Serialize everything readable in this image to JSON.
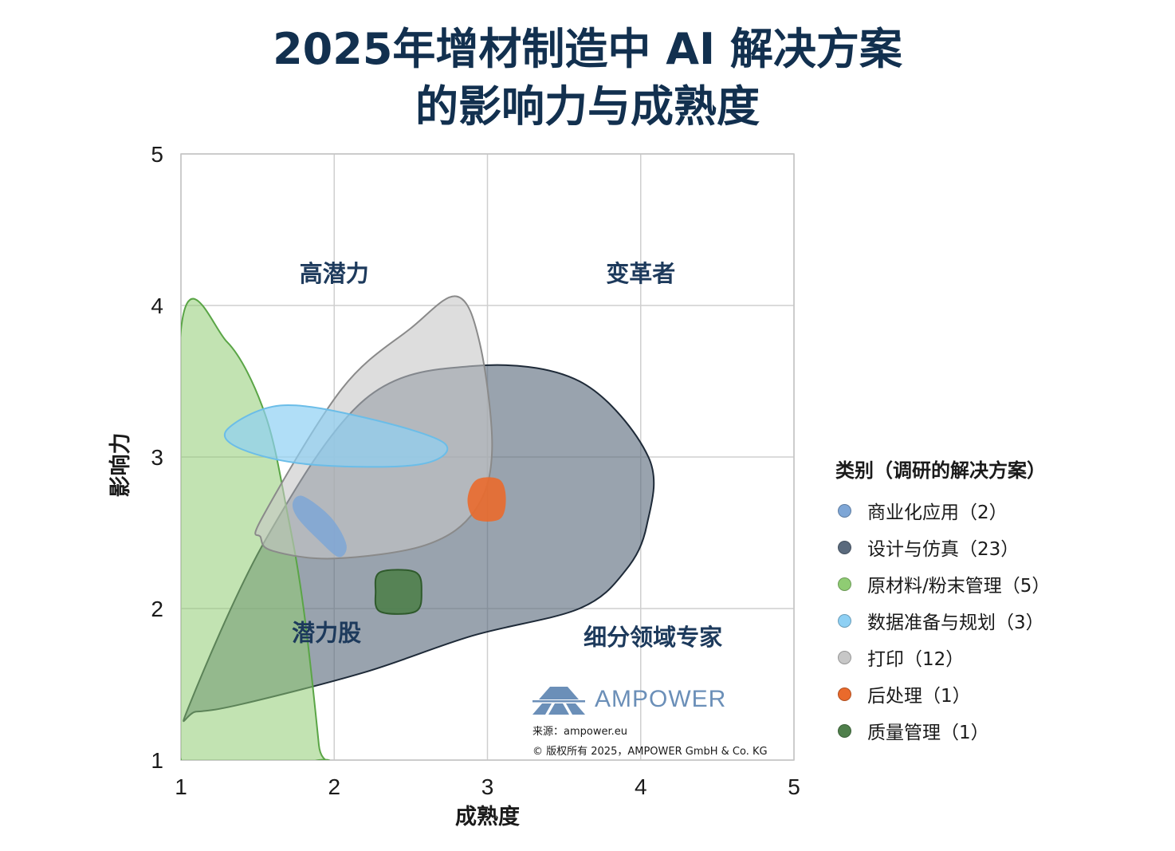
{
  "title_line1": "2025年增材制造中 AI 解决方案",
  "title_line2": "的影响力与成熟度",
  "colors": {
    "title": "#12304f",
    "quadrant_label": "#1d3a5c",
    "grid": "#cfcfcf",
    "brand": "#6b8fb8"
  },
  "chart_data": {
    "type": "scatter",
    "title": "2025年增材制造中 AI 解决方案的影响力与成熟度",
    "xlabel": "成熟度",
    "ylabel": "影响力",
    "xlim": [
      1,
      5
    ],
    "ylim": [
      1,
      5
    ],
    "x_ticks": [
      1,
      2,
      3,
      4,
      5
    ],
    "y_ticks": [
      1,
      2,
      3,
      4,
      5
    ],
    "grid": true,
    "legend_position": "right",
    "legend_title": "类别（调研的解决方案）",
    "quadrants": [
      {
        "label": "高潜力",
        "x": 2.0,
        "y": 4.2
      },
      {
        "label": "变革者",
        "x": 4.0,
        "y": 4.2
      },
      {
        "label": "潜力股",
        "x": 1.95,
        "y": 1.83
      },
      {
        "label": "细分领域专家",
        "x": 4.08,
        "y": 1.8
      }
    ],
    "series": [
      {
        "name": "商业化应用（2）",
        "color": "#7ea6d6",
        "fill_opacity": 0.85,
        "stroke": "none",
        "region": [
          [
            1.8,
            2.74
          ],
          [
            1.98,
            2.6
          ],
          [
            2.08,
            2.42
          ],
          [
            2.03,
            2.34
          ],
          [
            1.9,
            2.45
          ],
          [
            1.76,
            2.6
          ],
          [
            1.73,
            2.7
          ]
        ]
      },
      {
        "name": "设计与仿真（23）",
        "color": "#5a6a7d",
        "fill_opacity": 0.62,
        "stroke": "#1e2a38",
        "region": [
          [
            1.05,
            1.35
          ],
          [
            1.55,
            2.45
          ],
          [
            2.2,
            3.38
          ],
          [
            2.9,
            3.6
          ],
          [
            3.6,
            3.5
          ],
          [
            4.05,
            3.0
          ],
          [
            4.04,
            2.55
          ],
          [
            3.9,
            2.25
          ],
          [
            3.6,
            2.0
          ],
          [
            2.9,
            1.82
          ],
          [
            2.2,
            1.58
          ],
          [
            1.4,
            1.37
          ],
          [
            1.1,
            1.32
          ]
        ]
      },
      {
        "name": "原材料/粉末管理（5）",
        "color": "#8fcc73",
        "fill_opacity": 0.55,
        "stroke": "#5aa546",
        "region": [
          [
            1.0,
            3.84
          ],
          [
            1.3,
            3.76
          ],
          [
            1.55,
            3.28
          ],
          [
            1.7,
            2.6
          ],
          [
            1.8,
            2.0
          ],
          [
            1.9,
            1.1
          ],
          [
            1.9,
            1.0
          ],
          [
            1.0,
            1.0
          ]
        ]
      },
      {
        "name": "数据准备与规划（3）",
        "color": "#8ed0f4",
        "fill_opacity": 0.7,
        "stroke": "#6bbde8",
        "region": [
          [
            1.3,
            3.18
          ],
          [
            1.65,
            3.34
          ],
          [
            2.2,
            3.26
          ],
          [
            2.72,
            3.09
          ],
          [
            2.55,
            2.95
          ],
          [
            1.85,
            2.95
          ],
          [
            1.4,
            3.05
          ]
        ]
      },
      {
        "name": "打印（12）",
        "color": "#c7c7c7",
        "fill_opacity": 0.6,
        "stroke": "#8a8a8a",
        "region": [
          [
            1.53,
            2.6
          ],
          [
            2.05,
            3.45
          ],
          [
            2.5,
            3.85
          ],
          [
            2.8,
            4.06
          ],
          [
            2.95,
            3.75
          ],
          [
            3.03,
            3.05
          ],
          [
            2.92,
            2.65
          ],
          [
            2.6,
            2.42
          ],
          [
            2.0,
            2.33
          ],
          [
            1.6,
            2.38
          ],
          [
            1.52,
            2.47
          ]
        ]
      },
      {
        "name": "后处理（1）",
        "color": "#ea6a2c",
        "fill_opacity": 0.9,
        "stroke": "none",
        "region": [
          [
            2.93,
            2.85
          ],
          [
            3.08,
            2.85
          ],
          [
            3.12,
            2.72
          ],
          [
            3.08,
            2.59
          ],
          [
            2.92,
            2.59
          ],
          [
            2.87,
            2.72
          ]
        ]
      },
      {
        "name": "质量管理（1）",
        "color": "#4f7f4b",
        "fill_opacity": 0.9,
        "stroke": "#2f5a2c",
        "region": [
          [
            2.3,
            2.24
          ],
          [
            2.53,
            2.24
          ],
          [
            2.57,
            2.11
          ],
          [
            2.53,
            1.98
          ],
          [
            2.3,
            1.98
          ],
          [
            2.27,
            2.11
          ]
        ]
      }
    ]
  },
  "brand": {
    "name": "AMPOWER",
    "source": "来源：ampower.eu",
    "copyright": "© 版权所有 2025，AMPOWER GmbH & Co. KG"
  }
}
